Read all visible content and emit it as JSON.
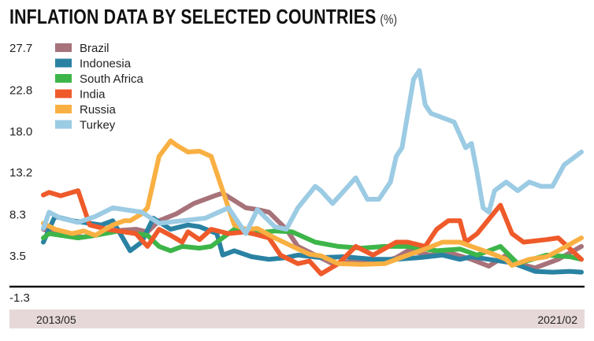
{
  "chart_data": {
    "type": "line",
    "title": "INFLATION DATA BY SELECTED COUNTRIES",
    "unit": "(%)",
    "xlabel": "",
    "ylabel": "",
    "x_unit": "months since 2013/05",
    "x_tick_labels": [
      "2013/05",
      "2021/02"
    ],
    "xlim": [
      0,
      93
    ],
    "y_ticks": [
      "27.7",
      "22.8",
      "18.0",
      "13.2",
      "8.3",
      "3.5",
      "-1.3"
    ],
    "ylim": [
      -1.3,
      27.7
    ],
    "grid": false,
    "legend_position": "top-left",
    "series": [
      {
        "name": "Brazil",
        "color": "#a7727a",
        "points": [
          [
            0,
            6.5
          ],
          [
            3,
            5.8
          ],
          [
            7,
            5.6
          ],
          [
            9,
            5.8
          ],
          [
            12,
            6.3
          ],
          [
            16,
            6.5
          ],
          [
            18,
            6.2
          ],
          [
            20,
            7.5
          ],
          [
            23,
            8.3
          ],
          [
            26,
            9.5
          ],
          [
            30,
            10.5
          ],
          [
            31,
            10.7
          ],
          [
            35,
            9
          ],
          [
            37,
            8.8
          ],
          [
            39,
            8.5
          ],
          [
            42,
            6.5
          ],
          [
            44,
            4.5
          ],
          [
            47,
            3.5
          ],
          [
            50,
            2.5
          ],
          [
            54,
            2.8
          ],
          [
            58,
            2.5
          ],
          [
            61,
            3.2
          ],
          [
            63,
            4
          ],
          [
            67,
            3.5
          ],
          [
            70,
            3.8
          ],
          [
            74,
            3
          ],
          [
            77,
            2.2
          ],
          [
            80,
            3.5
          ],
          [
            82,
            2.5
          ],
          [
            85,
            2
          ],
          [
            89,
            3
          ],
          [
            93,
            4.5
          ]
        ]
      },
      {
        "name": "Indonesia",
        "color": "#2a82a3",
        "points": [
          [
            0,
            5
          ],
          [
            2,
            8
          ],
          [
            5,
            7.5
          ],
          [
            7,
            7.3
          ],
          [
            10,
            7
          ],
          [
            12,
            7.5
          ],
          [
            15,
            4
          ],
          [
            17,
            5
          ],
          [
            19,
            7.8
          ],
          [
            22,
            6.5
          ],
          [
            25,
            7
          ],
          [
            27,
            6.8
          ],
          [
            30,
            6
          ],
          [
            31,
            3.5
          ],
          [
            33,
            4
          ],
          [
            36,
            3.3
          ],
          [
            39,
            3
          ],
          [
            42,
            3.2
          ],
          [
            44,
            3.5
          ],
          [
            48,
            3.2
          ],
          [
            52,
            3.3
          ],
          [
            57,
            3
          ],
          [
            61,
            3
          ],
          [
            65,
            3.2
          ],
          [
            69,
            3.5
          ],
          [
            72,
            3
          ],
          [
            74,
            3.3
          ],
          [
            77,
            3
          ],
          [
            81,
            2.6
          ],
          [
            85,
            1.6
          ],
          [
            88,
            1.5
          ],
          [
            91,
            1.6
          ],
          [
            93,
            1.5
          ]
        ]
      },
      {
        "name": "South Africa",
        "color": "#3db549",
        "points": [
          [
            0,
            5.5
          ],
          [
            1,
            6
          ],
          [
            3,
            5.8
          ],
          [
            6,
            5.5
          ],
          [
            9,
            5.8
          ],
          [
            13,
            6.3
          ],
          [
            18,
            5.8
          ],
          [
            20,
            4.5
          ],
          [
            22,
            4
          ],
          [
            24,
            4.5
          ],
          [
            27,
            4.3
          ],
          [
            29,
            4.5
          ],
          [
            33,
            6.5
          ],
          [
            36,
            6
          ],
          [
            40,
            6.3
          ],
          [
            43,
            6.2
          ],
          [
            47,
            5
          ],
          [
            51,
            4.5
          ],
          [
            55,
            4.3
          ],
          [
            59,
            4.5
          ],
          [
            63,
            4.5
          ],
          [
            68,
            4
          ],
          [
            72,
            4.2
          ],
          [
            75,
            3.5
          ],
          [
            79,
            4.5
          ],
          [
            82,
            2.5
          ],
          [
            87,
            3.5
          ],
          [
            91,
            3.3
          ],
          [
            93,
            3
          ]
        ]
      },
      {
        "name": "India",
        "color": "#ef5a2a",
        "points": [
          [
            0,
            10.5
          ],
          [
            1,
            10.8
          ],
          [
            3,
            10.4
          ],
          [
            6,
            11
          ],
          [
            8,
            7
          ],
          [
            11,
            6.5
          ],
          [
            13,
            6.3
          ],
          [
            16,
            6
          ],
          [
            18,
            4.5
          ],
          [
            20,
            6.5
          ],
          [
            22,
            5.8
          ],
          [
            24,
            5
          ],
          [
            25,
            6.2
          ],
          [
            27,
            5.3
          ],
          [
            29,
            6.5
          ],
          [
            32,
            6
          ],
          [
            35,
            6.2
          ],
          [
            39,
            5.5
          ],
          [
            41,
            3.5
          ],
          [
            44,
            2.5
          ],
          [
            46,
            2.8
          ],
          [
            48,
            1.3
          ],
          [
            51,
            2.5
          ],
          [
            54,
            4.5
          ],
          [
            57,
            3.5
          ],
          [
            61,
            5
          ],
          [
            63,
            5
          ],
          [
            66,
            4.5
          ],
          [
            68,
            6.5
          ],
          [
            70,
            7.5
          ],
          [
            72,
            7.5
          ],
          [
            73,
            5
          ],
          [
            75,
            6
          ],
          [
            78,
            8.5
          ],
          [
            79,
            9.3
          ],
          [
            81,
            6
          ],
          [
            83,
            5
          ],
          [
            87,
            5.3
          ],
          [
            89,
            5.5
          ],
          [
            93,
            3
          ]
        ]
      },
      {
        "name": "Russia",
        "color": "#f9b042",
        "points": [
          [
            0,
            7.2
          ],
          [
            2,
            6.5
          ],
          [
            5,
            6
          ],
          [
            7,
            6.3
          ],
          [
            9,
            5.8
          ],
          [
            12,
            7
          ],
          [
            14,
            7.5
          ],
          [
            15,
            7.5
          ],
          [
            17,
            8.3
          ],
          [
            18,
            9
          ],
          [
            20,
            15
          ],
          [
            22,
            16.8
          ],
          [
            23,
            16.3
          ],
          [
            25,
            15.5
          ],
          [
            27,
            15.6
          ],
          [
            29,
            15
          ],
          [
            31,
            11
          ],
          [
            33,
            7
          ],
          [
            35,
            6.5
          ],
          [
            37,
            6.6
          ],
          [
            40,
            5.5
          ],
          [
            44,
            4.2
          ],
          [
            46,
            3.6
          ],
          [
            48,
            3.4
          ],
          [
            51,
            2.5
          ],
          [
            55,
            2.4
          ],
          [
            59,
            2.5
          ],
          [
            63,
            3.5
          ],
          [
            66,
            4.2
          ],
          [
            69,
            5
          ],
          [
            72,
            5
          ],
          [
            74,
            4.5
          ],
          [
            77,
            3.8
          ],
          [
            80,
            3
          ],
          [
            81,
            2.3
          ],
          [
            84,
            3
          ],
          [
            87,
            3.3
          ],
          [
            89,
            4
          ],
          [
            93,
            5.5
          ]
        ]
      },
      {
        "name": "Turkey",
        "color": "#9ccbe4",
        "points": [
          [
            0,
            6.6
          ],
          [
            1,
            8.5
          ],
          [
            3,
            7.8
          ],
          [
            6,
            7.3
          ],
          [
            9,
            8
          ],
          [
            12,
            9
          ],
          [
            14,
            8.8
          ],
          [
            17,
            8.5
          ],
          [
            20,
            7.2
          ],
          [
            24,
            7.5
          ],
          [
            28,
            7.8
          ],
          [
            32,
            9
          ],
          [
            35,
            6
          ],
          [
            37,
            8.8
          ],
          [
            40,
            6.8
          ],
          [
            42,
            6.5
          ],
          [
            44,
            9
          ],
          [
            47,
            11.5
          ],
          [
            48,
            11
          ],
          [
            50,
            9.5
          ],
          [
            52,
            11
          ],
          [
            54,
            12.5
          ],
          [
            56,
            10
          ],
          [
            58,
            10
          ],
          [
            60,
            12
          ],
          [
            61,
            15
          ],
          [
            62,
            16
          ],
          [
            64,
            24
          ],
          [
            65,
            25
          ],
          [
            66,
            21
          ],
          [
            67,
            20
          ],
          [
            69,
            19.5
          ],
          [
            71,
            19
          ],
          [
            73,
            16
          ],
          [
            74,
            16.5
          ],
          [
            75,
            13
          ],
          [
            76,
            9
          ],
          [
            77,
            8.5
          ],
          [
            78,
            11
          ],
          [
            80,
            12
          ],
          [
            82,
            11
          ],
          [
            84,
            12
          ],
          [
            86,
            11.5
          ],
          [
            88,
            11.5
          ],
          [
            90,
            14
          ],
          [
            93,
            15.5
          ]
        ]
      }
    ]
  }
}
